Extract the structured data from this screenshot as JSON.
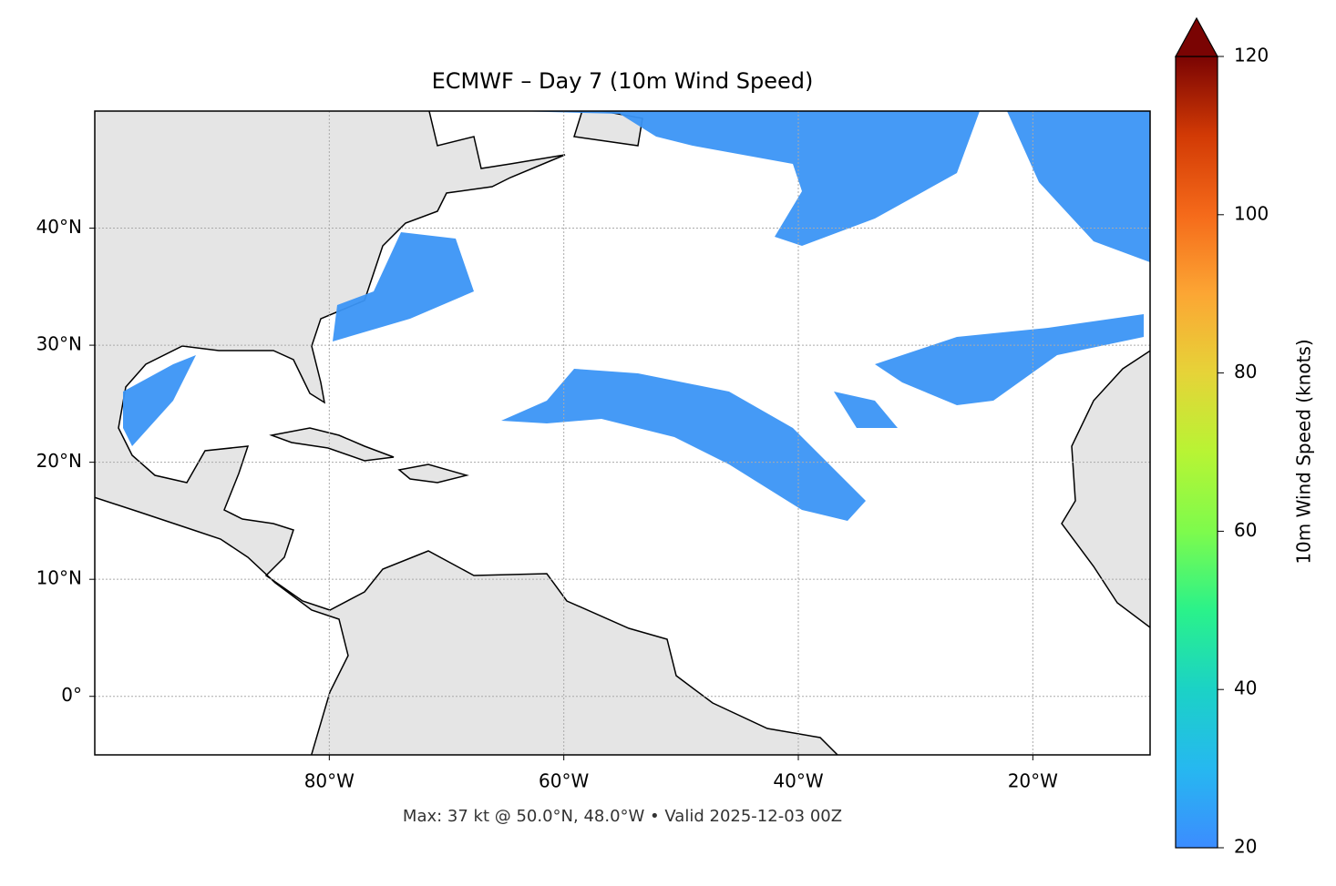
{
  "title": "ECMWF – Day 7 (10m Wind Speed)",
  "map": {
    "xlim": [
      -100,
      -10
    ],
    "ylim": [
      -5,
      50
    ],
    "xticks": [
      {
        "value": -80,
        "label": "80°W"
      },
      {
        "value": -60,
        "label": "60°W"
      },
      {
        "value": -40,
        "label": "40°W"
      },
      {
        "value": -20,
        "label": "20°W"
      }
    ],
    "yticks": [
      {
        "value": 0,
        "label": "0°"
      },
      {
        "value": 10,
        "label": "10°N"
      },
      {
        "value": 20,
        "label": "20°N"
      },
      {
        "value": 30,
        "label": "30°N"
      },
      {
        "value": 40,
        "label": "40°N"
      }
    ],
    "grid": true
  },
  "colorbar": {
    "label": "10m Wind Speed (knots)",
    "lim": [
      20,
      120
    ],
    "ticks": [
      20,
      40,
      60,
      80,
      100,
      120
    ]
  },
  "footnote": "Max: 37 kt @ 50.0°N, 48.0°W • Valid 2025-12-03 00Z"
}
